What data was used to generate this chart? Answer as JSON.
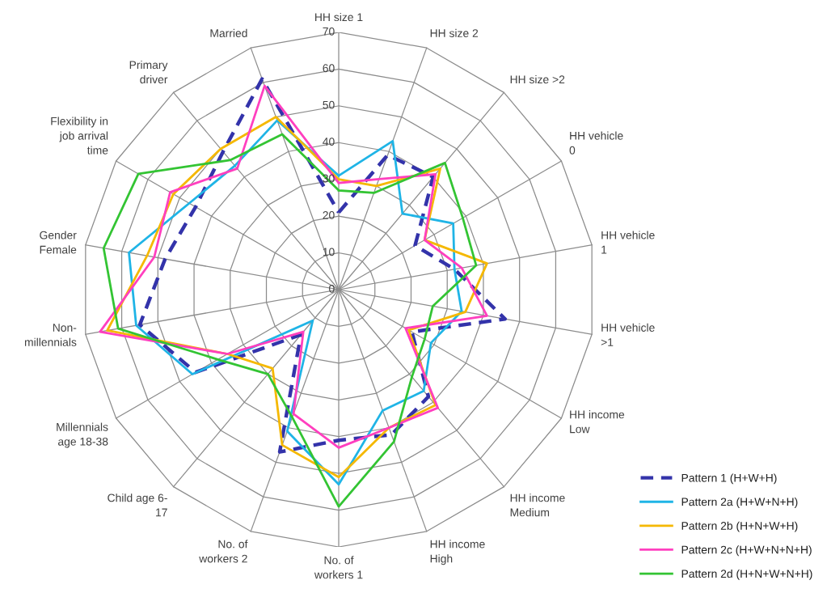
{
  "chart_data": {
    "type": "radar",
    "categories": [
      "HH size 1",
      "HH size 2",
      "HH size >2",
      "HH vehicle\n0",
      "HH vehicle\n1",
      "HH vehicle\n>1",
      "HH income\nLow",
      "HH income\nMedium",
      "HH income\nHigh",
      "No. of\nworkers 1",
      "No. of\nworkers 2",
      "Child age 6-\n17",
      "Millennials\nage 18-38",
      "Non-\nmillennials",
      "Gender\nFemale",
      "Flexibility in\njob arrival\ntime",
      "Primary\ndriver",
      "Married"
    ],
    "series": [
      {
        "name": "Pattern 1 (H+W+H)",
        "color": "#3333aa",
        "line_style": "dashed",
        "values": [
          21,
          39,
          40,
          24,
          32,
          46,
          23,
          38,
          42,
          41,
          47,
          16,
          45,
          55,
          48,
          45,
          49,
          61
        ]
      },
      {
        "name": "Pattern 2a (H+W+N+H)",
        "color": "#1fb4e6",
        "values": [
          31,
          43,
          27,
          36,
          32,
          34,
          29,
          36,
          35,
          53,
          41,
          11,
          46,
          56,
          58,
          47,
          44,
          49
        ]
      },
      {
        "name": "Pattern 2b (H+N+W+H)",
        "color": "#f5b800",
        "values": [
          30,
          30,
          43,
          27,
          41,
          35,
          22,
          41,
          40,
          51,
          45,
          28,
          35,
          64,
          53,
          52,
          50,
          50
        ]
      },
      {
        "name": "Pattern 2c (H+W+N+N+H)",
        "color": "#ff3fbf",
        "values": [
          29,
          32,
          41,
          27,
          34,
          41,
          21,
          42,
          40,
          43,
          36,
          15,
          35,
          66,
          51,
          53,
          43,
          59
        ]
      },
      {
        "name": "Pattern 2d (H+N+W+N+H)",
        "color": "#33c433",
        "values": [
          27,
          28,
          45,
          39,
          38,
          26,
          27,
          31,
          44,
          59,
          37,
          30,
          38,
          61,
          65,
          63,
          46,
          45
        ]
      }
    ],
    "ylim": [
      0,
      70
    ],
    "yticks": [
      0,
      10,
      20,
      30,
      40,
      50,
      60,
      70
    ],
    "grid": true,
    "legend": "bottom right",
    "line_style": "solid",
    "marker": "none"
  }
}
